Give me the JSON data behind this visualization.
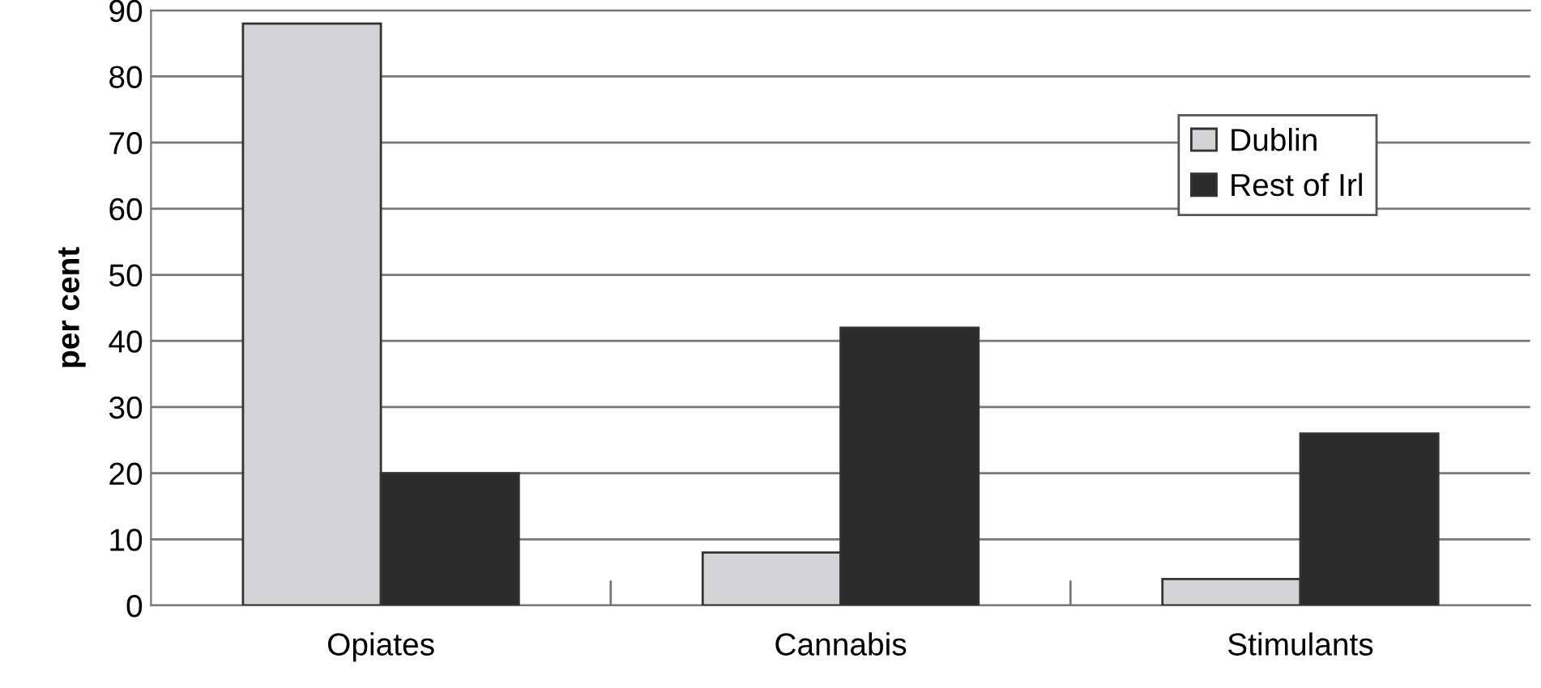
{
  "chart_data": {
    "type": "bar",
    "ylabel": "per cent",
    "categories": [
      "Opiates",
      "Cannabis",
      "Stimulants"
    ],
    "series": [
      {
        "name": "Dublin",
        "color": "#d4d4d6",
        "values": [
          88,
          8,
          4
        ]
      },
      {
        "name": "Rest of Irl",
        "color": "#2b2b2b",
        "values": [
          20,
          42,
          26
        ]
      }
    ],
    "ylim": [
      0,
      90
    ],
    "yticks": [
      0,
      10,
      20,
      30,
      40,
      50,
      60,
      70,
      80,
      90
    ],
    "grid": "y",
    "legend": "top right"
  }
}
